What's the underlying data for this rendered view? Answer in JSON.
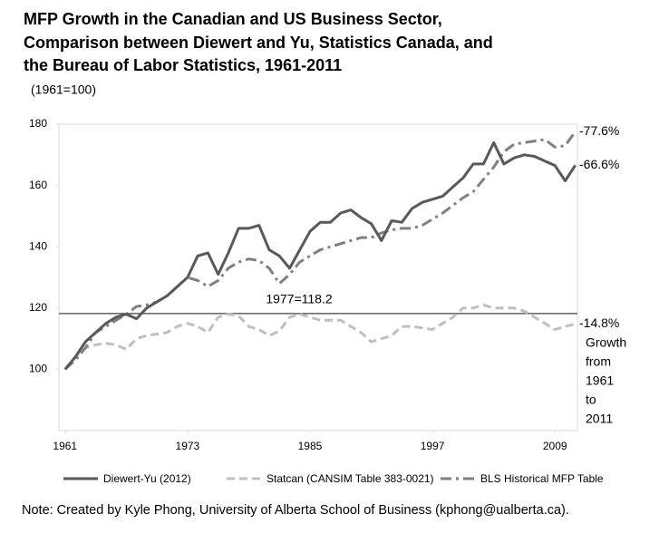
{
  "chart_data": {
    "type": "line",
    "title": [
      "MFP Growth in the Canadian and US Business Sector,",
      "Comparison between Diewert and Yu, Statistics Canada, and",
      "the Bureau of Labor Statistics, 1961-2011"
    ],
    "subtitle": "(1961=100)",
    "x": [
      1961,
      1962,
      1963,
      1964,
      1965,
      1966,
      1967,
      1968,
      1969,
      1970,
      1971,
      1972,
      1973,
      1974,
      1975,
      1976,
      1977,
      1978,
      1979,
      1980,
      1981,
      1982,
      1983,
      1984,
      1985,
      1986,
      1987,
      1988,
      1989,
      1990,
      1991,
      1992,
      1993,
      1994,
      1995,
      1996,
      1997,
      1998,
      1999,
      2000,
      2001,
      2002,
      2003,
      2004,
      2005,
      2006,
      2007,
      2008,
      2009,
      2010,
      2011
    ],
    "series": [
      {
        "name": "Diewert-Yu (2012)",
        "color": "#595959",
        "dash": "solid",
        "end_label": "-66.6%",
        "values": [
          100,
          104,
          109,
          112,
          115,
          117,
          118,
          116.5,
          120,
          122,
          124,
          127,
          130,
          137,
          138,
          131,
          138,
          146,
          146,
          147,
          139,
          137,
          133,
          139,
          145,
          148,
          148,
          151,
          152,
          149.5,
          147.5,
          142,
          148.5,
          148,
          152.5,
          154.5,
          155.5,
          156.5,
          159.5,
          162.5,
          167,
          167,
          174,
          167,
          169,
          170,
          169.5,
          168,
          166.5,
          161.5,
          166.6
        ]
      },
      {
        "name": "Statcan (CANSIM Table 383-0021)",
        "color": "#bfbfbf",
        "dash": "dash",
        "end_label": "-14.8%",
        "values": [
          100,
          104,
          107,
          108,
          108.5,
          108,
          106.5,
          110,
          111,
          111.5,
          112,
          114,
          115,
          114,
          112,
          117,
          118,
          117.5,
          114,
          113,
          111,
          112.5,
          117,
          118,
          117,
          116,
          116,
          116,
          114,
          112,
          109,
          110,
          111,
          114,
          114,
          113.5,
          113,
          115,
          117,
          120,
          120,
          121,
          120,
          120,
          120,
          119,
          117,
          115,
          113,
          114,
          114.8
        ]
      },
      {
        "name": "BLS Historical MFP Table",
        "color": "#808080",
        "dash": "dashdot",
        "end_label": "-77.6%",
        "values": [
          100,
          103,
          107,
          112,
          114,
          116,
          118,
          120.5,
          121,
          122,
          124,
          127,
          130,
          129,
          127,
          129,
          133,
          135,
          136,
          135.5,
          133,
          128,
          131,
          135,
          137,
          139,
          140,
          141,
          142,
          143,
          143,
          144.5,
          145.5,
          146,
          146,
          147,
          149,
          151,
          153.5,
          156,
          158,
          162,
          166,
          171,
          173.5,
          174,
          174.5,
          175,
          172.5,
          173,
          177.6
        ]
      }
    ],
    "reference_line": {
      "value": 118.2,
      "label": "1977=118.2",
      "color": "#404040"
    },
    "growth_note": [
      "Growth",
      "from",
      "1961",
      "to",
      "2011"
    ],
    "xlim": [
      1960.4,
      2011.2
    ],
    "xticks": [
      1961,
      1973,
      1985,
      1997,
      2009
    ],
    "ylim": [
      80,
      180
    ],
    "yticks": [
      100,
      120,
      140,
      160,
      180
    ],
    "legend": "bottom",
    "note": "Note: Created by Kyle Phong, University of Alberta School of Business (kphong@ualberta.ca)."
  }
}
